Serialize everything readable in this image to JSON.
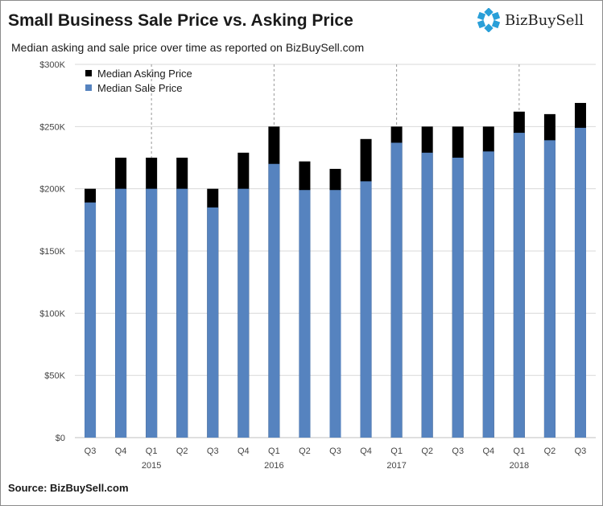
{
  "title": "Small Business Sale Price vs. Asking Price",
  "subtitle": "Median asking and sale price over time as reported  on  BizBuySell.com",
  "brand": "BizBuySell",
  "source": "Source: BizBuySell.com",
  "colors": {
    "asking": "#000000",
    "sale": "#5683bf",
    "logo": "#2a9fd8",
    "grid": "#d9d9d9"
  },
  "chart_data": {
    "type": "bar",
    "stacked": "overlay",
    "categories": [
      "Q3",
      "Q4",
      "Q1",
      "Q2",
      "Q3",
      "Q4",
      "Q1",
      "Q2",
      "Q3",
      "Q4",
      "Q1",
      "Q2",
      "Q3",
      "Q4",
      "Q1",
      "Q2",
      "Q3"
    ],
    "year_labels": [
      {
        "label": "2015",
        "index": 2
      },
      {
        "label": "2016",
        "index": 6
      },
      {
        "label": "2017",
        "index": 10
      },
      {
        "label": "2018",
        "index": 14
      }
    ],
    "series": [
      {
        "name": "Median Asking Price",
        "values": [
          200000,
          225000,
          225000,
          225000,
          200000,
          229000,
          250000,
          222000,
          216000,
          240000,
          250000,
          250000,
          250000,
          250000,
          262000,
          260000,
          269000
        ]
      },
      {
        "name": "Median Sale Price",
        "values": [
          189000,
          200000,
          200000,
          200000,
          185000,
          200000,
          220000,
          199000,
          199000,
          206000,
          237000,
          229000,
          225000,
          230000,
          245000,
          239000,
          249000
        ]
      }
    ],
    "yticks": [
      "$0",
      "$50K",
      "$100K",
      "$150K",
      "$200K",
      "$250K",
      "$300K"
    ],
    "ylim": [
      0,
      300000
    ],
    "ytick_step": 50000,
    "grid": true,
    "legend": "top-left"
  }
}
